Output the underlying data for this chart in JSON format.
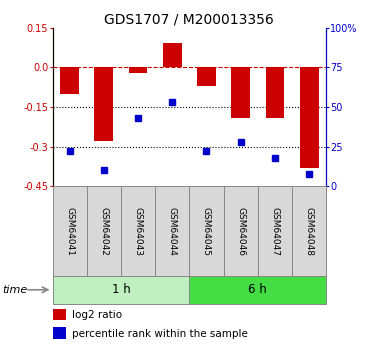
{
  "title": "GDS1707 / M200013356",
  "samples": [
    "GSM64041",
    "GSM64042",
    "GSM64043",
    "GSM64044",
    "GSM64045",
    "GSM64046",
    "GSM64047",
    "GSM64048"
  ],
  "log2_ratio": [
    -0.1,
    -0.28,
    -0.02,
    0.09,
    -0.07,
    -0.19,
    -0.19,
    -0.38
  ],
  "percentile_rank": [
    22,
    10,
    43,
    53,
    22,
    28,
    18,
    8
  ],
  "groups": [
    {
      "label": "1 h",
      "start": 0,
      "end": 4,
      "color": "#c0f0c0"
    },
    {
      "label": "6 h",
      "start": 4,
      "end": 8,
      "color": "#44dd44"
    }
  ],
  "bar_color": "#cc0000",
  "dot_color": "#0000cc",
  "ylim_left": [
    -0.45,
    0.15
  ],
  "yticks_left": [
    0.15,
    0.0,
    -0.15,
    -0.3,
    -0.45
  ],
  "ylim_right": [
    0,
    100
  ],
  "yticks_right": [
    100,
    75,
    50,
    25,
    0
  ],
  "hline_dash": 0.0,
  "hlines_dot": [
    -0.15,
    -0.3
  ],
  "title_fontsize": 10,
  "tick_fontsize": 7,
  "label_fontsize": 6.5,
  "legend_entries": [
    "log2 ratio",
    "percentile rank within the sample"
  ],
  "time_label": "time"
}
